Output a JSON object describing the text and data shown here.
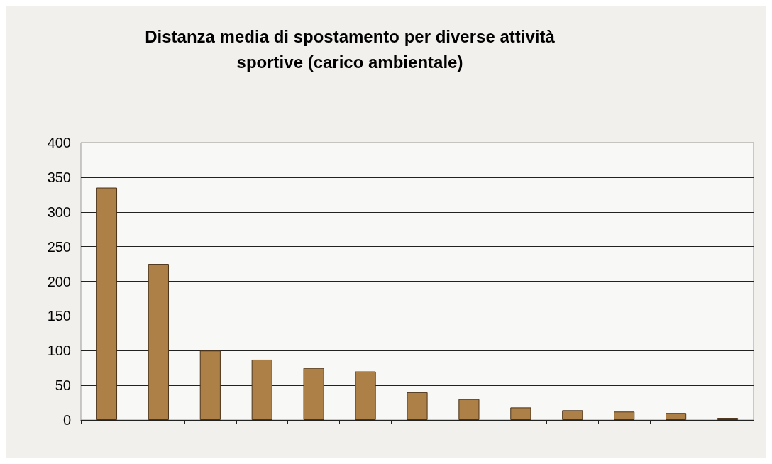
{
  "chart_data": {
    "type": "bar",
    "title": "Distanza media di spostamento per diverse attività\nsportive (carico ambientale)",
    "categories": [
      null,
      null,
      null,
      null,
      null,
      null,
      null,
      null,
      null,
      null,
      null,
      null,
      null
    ],
    "values": [
      335,
      225,
      100,
      87,
      75,
      70,
      40,
      30,
      18,
      14,
      12,
      10,
      3
    ],
    "color": "#ad8048",
    "ylim": [
      0,
      400
    ],
    "yticks": [
      0,
      50,
      100,
      150,
      200,
      250,
      300,
      350,
      400
    ],
    "grid": "y"
  }
}
